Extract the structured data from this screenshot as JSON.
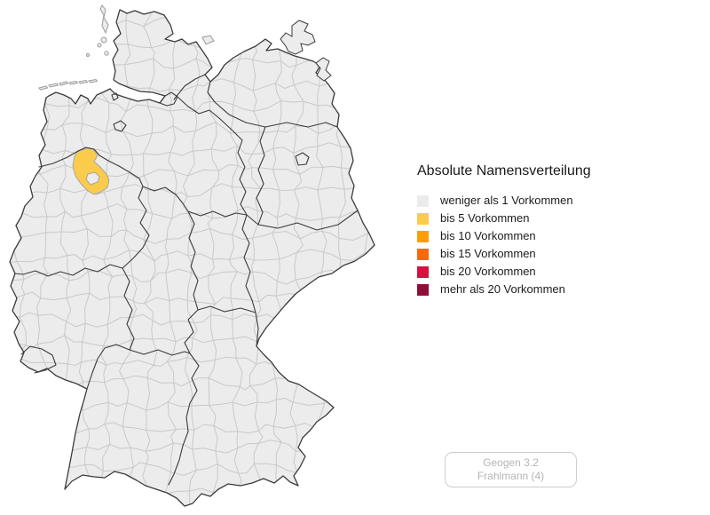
{
  "legend": {
    "title": "Absolute Namensverteilung",
    "items": [
      {
        "label": "weniger als 1 Vorkommen",
        "color": "#EBEBEB"
      },
      {
        "label": "bis 5 Vorkommen",
        "color": "#FBCB4B"
      },
      {
        "label": "bis 10 Vorkommen",
        "color": "#FB9E07"
      },
      {
        "label": "bis 15 Vorkommen",
        "color": "#F96908"
      },
      {
        "label": "bis 20 Vorkommen",
        "color": "#D8103F"
      },
      {
        "label": "mehr als 20 Vorkommen",
        "color": "#8E1038"
      }
    ]
  },
  "attribution": {
    "line1": "Geogen 3.2",
    "line2": "Frahlmann (4)"
  },
  "map": {
    "background": "#FFFFFF",
    "fill": "#ECECEC",
    "district_border_color": "#C9C9C9",
    "state_border_color": "#3B3B3B",
    "outline_color": "#3B3B3B",
    "island_border_color": "#9A9A9A",
    "highlighted_region": {
      "level_label": "bis 5 Vorkommen",
      "color": "#FBCB4B",
      "border_color": "#A6A6A6"
    }
  }
}
